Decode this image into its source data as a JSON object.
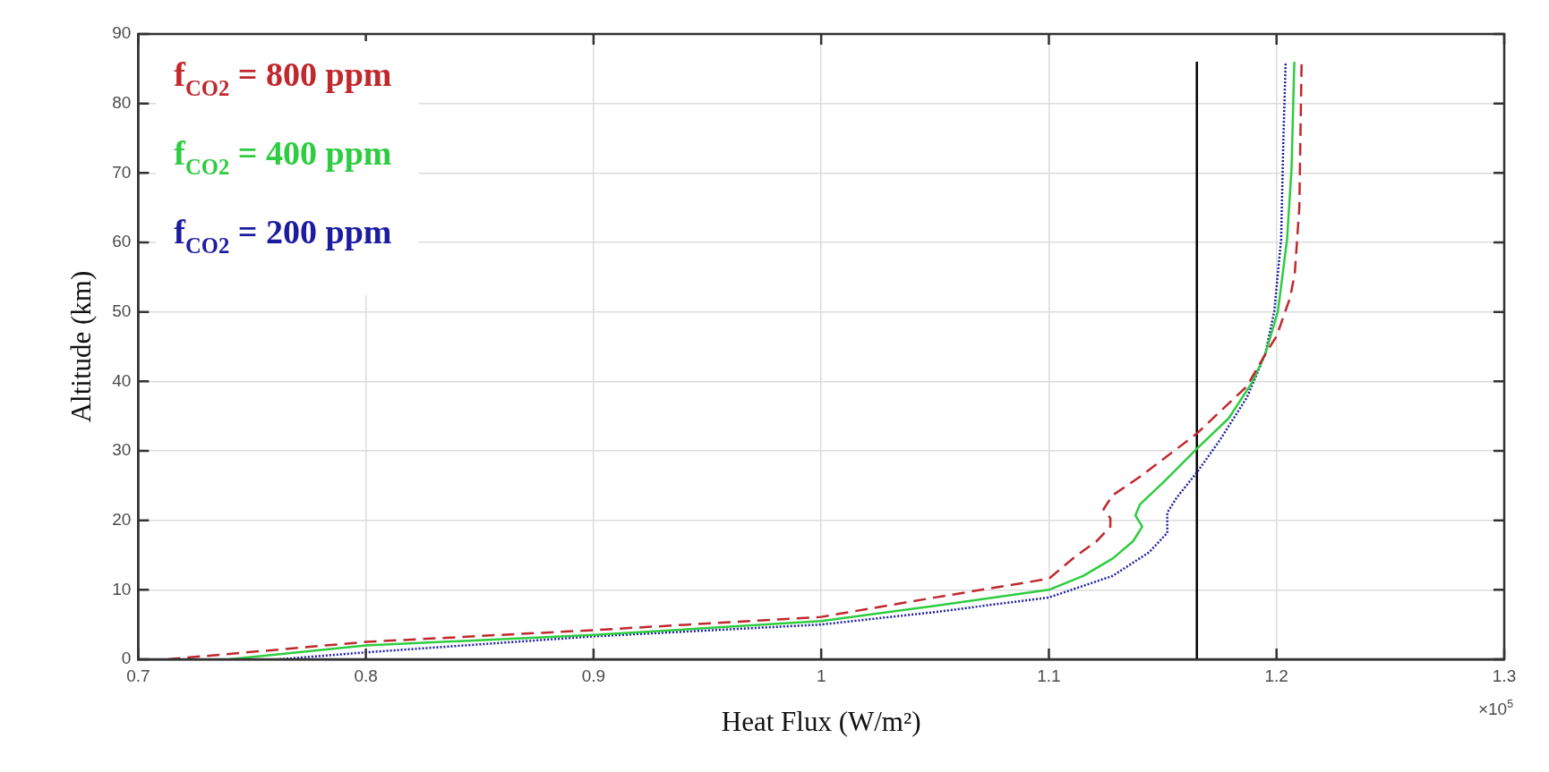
{
  "chart_data": {
    "type": "line",
    "xlabel": "Heat Flux (W/m²)",
    "ylabel": "Altitude (km)",
    "xlim": [
      0.7,
      1.3
    ],
    "xticks": [
      0.7,
      0.8,
      0.9,
      1,
      1.1,
      1.2,
      1.3
    ],
    "ylim": [
      0,
      90
    ],
    "yticks": [
      0,
      10,
      20,
      30,
      40,
      50,
      60,
      70,
      80,
      90
    ],
    "grid": true,
    "legend": "top left",
    "marker": "none",
    "annotations": [
      "×10$^{5}$"
    ],
    "series": [
      {
        "name": "f$_{CO2}$ = 800 ppm",
        "color": "#c0282d",
        "line_style": "dashed",
        "x": [
          0.713,
          0.8,
          0.9,
          1.0,
          1.05,
          1.1,
          1.112,
          1.121,
          1.127,
          1.127,
          1.124,
          1.128,
          1.141,
          1.165,
          1.187,
          1.195,
          1.2,
          1.206,
          1.208,
          1.21,
          1.211
        ],
        "values": [
          0,
          2.5,
          4.2,
          6.1,
          8.9,
          11.6,
          14.9,
          17.0,
          19.1,
          20.3,
          21.6,
          23.6,
          26.5,
          32.5,
          39.3,
          43.9,
          46.5,
          52.1,
          55.5,
          65,
          86
        ]
      },
      {
        "name": "f$_{CO2}$ = 400 ppm",
        "color": "#2ecc40",
        "line_style": "solid",
        "x": [
          0.74,
          0.8,
          0.9,
          1.0,
          1.05,
          1.1,
          1.115,
          1.128,
          1.137,
          1.141,
          1.138,
          1.14,
          1.151,
          1.165,
          1.179,
          1.189,
          1.195,
          1.2006,
          1.2046,
          1.2066,
          1.2078
        ],
        "values": [
          0,
          2.0,
          3.5,
          5.5,
          7.7,
          10.0,
          12.0,
          14.5,
          17.0,
          19.1,
          20.7,
          22.3,
          25.7,
          30.3,
          34.7,
          39.7,
          43.9,
          50.1,
          60.4,
          70.7,
          86
        ]
      },
      {
        "name": "f$_{CO2}$ = 200 ppm",
        "color": "#1c1ca0",
        "line_style": "dotted",
        "x": [
          0.762,
          0.8,
          0.9,
          1.0,
          1.05,
          1.1,
          1.128,
          1.144,
          1.152,
          1.152,
          1.156,
          1.165,
          1.175,
          1.187,
          1.195,
          1.199,
          1.202,
          1.203,
          1.204
        ],
        "values": [
          0,
          1.0,
          3.3,
          5.0,
          6.8,
          8.9,
          12.0,
          15.4,
          18.2,
          21.1,
          23.2,
          26.9,
          31.5,
          37.7,
          43.9,
          50.1,
          60.4,
          74.9,
          86
        ]
      },
      {
        "color": "#000000",
        "line_style": "solid",
        "x": [
          1.165,
          1.165
        ],
        "values": [
          0,
          86
        ]
      }
    ]
  }
}
